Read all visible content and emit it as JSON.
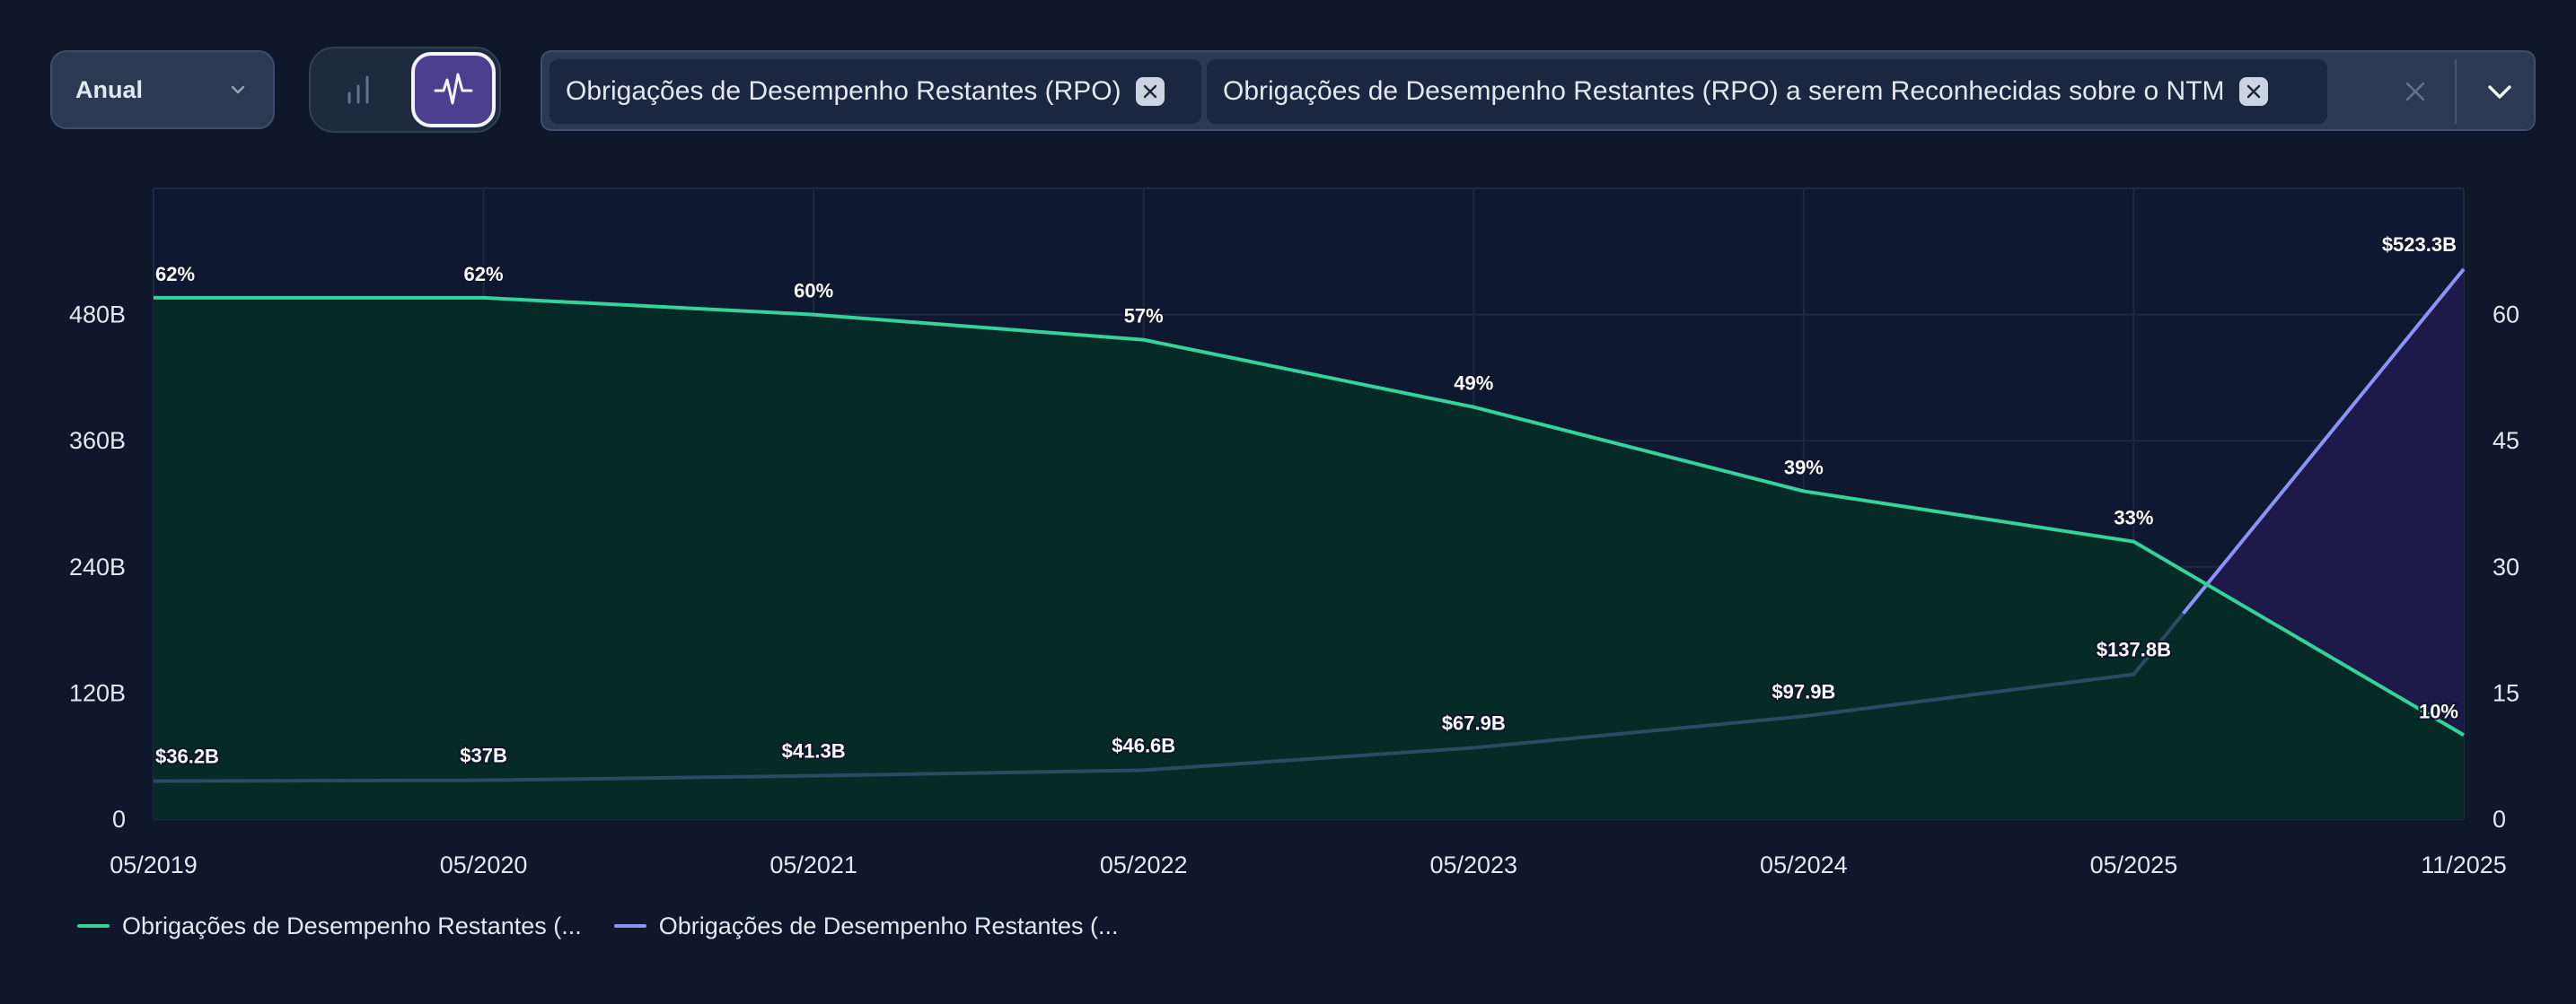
{
  "toolbar": {
    "period": "Anual",
    "metrics": [
      "Obrigações de Desempenho Restantes (RPO)",
      "Obrigações de Desempenho Restantes (RPO) a serem Reconhecidas sobre o NTM"
    ]
  },
  "icons": {
    "period_chevron": "chevron-down-icon",
    "bar_toggle": "bar-chart-icon",
    "line_toggle": "line-chart-icon",
    "chip_remove": "close-icon",
    "clear_all": "close-icon",
    "expand": "chevron-down-icon"
  },
  "colors": {
    "background": "#0f172a",
    "plot": "#0e1830",
    "series_rpo": "#34d399",
    "series_rpo_fill": "#062a26",
    "series_ntm": "#8b93f8",
    "series_ntm_fill": "#1d1a4a",
    "secondary_line": "#2c4a66"
  },
  "legend": [
    {
      "label": "Obrigações de Desempenho Restantes (...",
      "color": "#34d399"
    },
    {
      "label": "Obrigações de Desempenho Restantes (...",
      "color": "#8b93f8"
    }
  ],
  "chart_data": {
    "type": "line",
    "x": [
      "05/2019",
      "05/2020",
      "05/2021",
      "05/2022",
      "05/2023",
      "05/2024",
      "05/2025",
      "11/2025"
    ],
    "y_left": {
      "ticks": [
        "0",
        "120B",
        "240B",
        "360B",
        "480B"
      ],
      "range": [
        0,
        600
      ]
    },
    "y_right": {
      "ticks": [
        "0",
        "15",
        "30",
        "45",
        "60"
      ],
      "range": [
        0,
        75
      ]
    },
    "grid": true,
    "legend_position": "bottom-left",
    "series": [
      {
        "axis": "left",
        "values": [
          36.2,
          37,
          41.3,
          46.6,
          67.9,
          97.9,
          137.8,
          523.3
        ],
        "labels": [
          "$36.2B",
          "$37B",
          "$41.3B",
          "$46.6B",
          "$67.9B",
          "$97.9B",
          "$137.8B",
          "$523.3B"
        ]
      },
      {
        "axis": "right",
        "values": [
          62,
          62,
          60,
          57,
          49,
          39,
          33,
          10
        ],
        "labels": [
          "62%",
          "62%",
          "60%",
          "57%",
          "49%",
          "39%",
          "33%",
          "10%"
        ]
      }
    ]
  }
}
